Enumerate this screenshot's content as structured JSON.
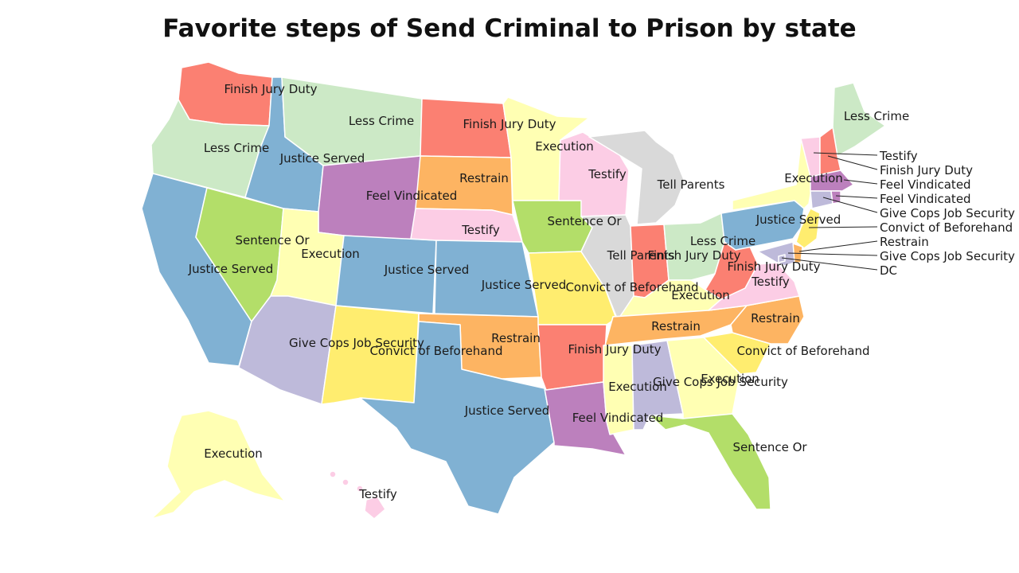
{
  "title": "Favorite steps of Send Criminal to Prison by state",
  "colors": {
    "Less Crime": "#cce9c6",
    "Finish Jury Duty": "#fb8072",
    "Justice Served": "#80b1d3",
    "Execution": "#ffffb3",
    "Testify": "#fccde5",
    "Restrain": "#fdb462",
    "Feel Vindicated": "#bc80bd",
    "Sentence Or": "#b3de69",
    "Tell Parents": "#d9d9d9",
    "Convict of Beforehand": "#ffed6f",
    "Give Cops Job Security": "#bebada"
  },
  "states": [
    {
      "id": "WA",
      "category": "Finish Jury Duty"
    },
    {
      "id": "OR",
      "category": "Less Crime"
    },
    {
      "id": "CA",
      "category": "Justice Served"
    },
    {
      "id": "ID",
      "category": "Justice Served"
    },
    {
      "id": "NV",
      "category": "Sentence Or"
    },
    {
      "id": "MT",
      "category": "Less Crime"
    },
    {
      "id": "WY",
      "category": "Feel Vindicated"
    },
    {
      "id": "UT",
      "category": "Execution"
    },
    {
      "id": "AZ",
      "category": "Give Cops Job Security"
    },
    {
      "id": "CO",
      "category": "Justice Served"
    },
    {
      "id": "NM",
      "category": "Convict of Beforehand"
    },
    {
      "id": "ND",
      "category": "Finish Jury Duty"
    },
    {
      "id": "SD",
      "category": "Restrain"
    },
    {
      "id": "NE",
      "category": "Testify"
    },
    {
      "id": "KS",
      "category": "Justice Served"
    },
    {
      "id": "OK",
      "category": "Restrain"
    },
    {
      "id": "TX",
      "category": "Justice Served"
    },
    {
      "id": "MN",
      "category": "Execution"
    },
    {
      "id": "IA",
      "category": "Sentence Or"
    },
    {
      "id": "MO",
      "category": "Convict of Beforehand"
    },
    {
      "id": "AR",
      "category": "Finish Jury Duty"
    },
    {
      "id": "LA",
      "category": "Feel Vindicated"
    },
    {
      "id": "WI",
      "category": "Testify"
    },
    {
      "id": "IL",
      "category": "Tell Parents"
    },
    {
      "id": "MI",
      "category": "Tell Parents"
    },
    {
      "id": "IN",
      "category": "Finish Jury Duty"
    },
    {
      "id": "OH",
      "category": "Less Crime"
    },
    {
      "id": "KY",
      "category": "Execution"
    },
    {
      "id": "TN",
      "category": "Restrain"
    },
    {
      "id": "MS",
      "category": "Execution"
    },
    {
      "id": "AL",
      "category": "Give Cops Job Security"
    },
    {
      "id": "GA",
      "category": "Execution"
    },
    {
      "id": "FL",
      "category": "Sentence Or"
    },
    {
      "id": "SC",
      "category": "Convict of Beforehand"
    },
    {
      "id": "NC",
      "category": "Restrain"
    },
    {
      "id": "VA",
      "category": "Testify"
    },
    {
      "id": "WV",
      "category": "Finish Jury Duty"
    },
    {
      "id": "PA",
      "category": "Justice Served"
    },
    {
      "id": "NY",
      "category": "Execution"
    },
    {
      "id": "ME",
      "category": "Less Crime"
    },
    {
      "id": "VT",
      "category": "Testify"
    },
    {
      "id": "NH",
      "category": "Finish Jury Duty"
    },
    {
      "id": "MA",
      "category": "Feel Vindicated"
    },
    {
      "id": "RI",
      "category": "Feel Vindicated"
    },
    {
      "id": "CT",
      "category": "Give Cops Job Security"
    },
    {
      "id": "NJ",
      "category": "Convict of Beforehand"
    },
    {
      "id": "DE",
      "category": "Restrain"
    },
    {
      "id": "MD",
      "category": "Give Cops Job Security"
    },
    {
      "id": "DC",
      "category": "Give Cops Job Security"
    },
    {
      "id": "AK",
      "category": "Execution"
    },
    {
      "id": "HI",
      "category": "Testify"
    }
  ],
  "labels": {
    "WA": "Finish Jury Duty",
    "OR": "Less Crime",
    "CA": "Justice Served",
    "ID": "Justice Served",
    "NV": "Sentence Or",
    "MT": "Less Crime",
    "WY": "Feel Vindicated",
    "UT": "Execution",
    "AZ": "Give Cops Job Security",
    "CO": "Justice Served",
    "NM": "Convict of Beforehand",
    "ND": "Finish Jury Duty",
    "SD": "Restrain",
    "NE": "Testify",
    "KS": "Justice Served",
    "OK": "Restrain",
    "TX": "Justice Served",
    "MN": "Execution",
    "IA": "Sentence Or",
    "MO": "Convict of Beforehand",
    "AR": "Finish Jury Duty",
    "LA": "Feel Vindicated",
    "WI": "Testify",
    "IL": "Tell Parents",
    "MI": "Tell Parents",
    "IN": "Finish Jury Duty",
    "OH": "Less Crime",
    "KY": "Execution",
    "TN": "Restrain",
    "MS": "Execution",
    "AL": "Give Cops Job Security",
    "GA": "Execution",
    "FL": "Sentence Or",
    "SC": "Convict of Beforehand",
    "NC": "Restrain",
    "VA": "Testify",
    "WV": "Finish Jury Duty",
    "PA": "Justice Served",
    "NY": "Execution",
    "ME": "Less Crime",
    "AK": "Execution",
    "HI": "Testify"
  },
  "callouts": {
    "VT": "Testify",
    "NH": "Finish Jury Duty",
    "MA": "Feel Vindicated",
    "RI": "Feel Vindicated",
    "CT": "Give Cops Job Security",
    "NJ": "Convict of Beforehand",
    "DE": "Restrain",
    "MD": "Give Cops Job Security",
    "DC": "DC"
  }
}
